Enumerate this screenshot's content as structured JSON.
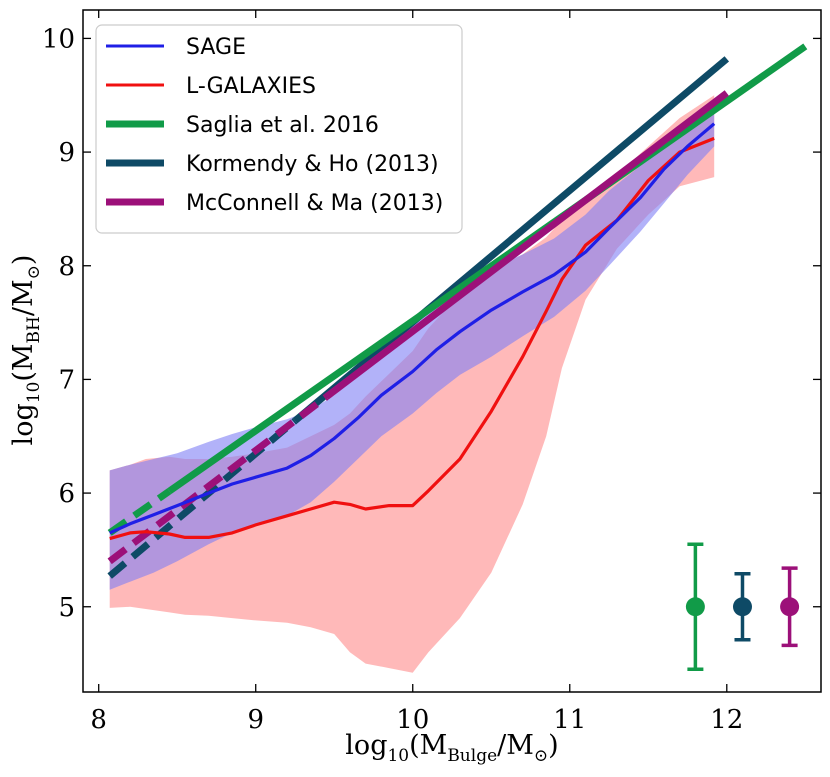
{
  "chart_data": {
    "type": "line",
    "xlabel": "log10(MBulge/M⊙)",
    "ylabel": "log10(MBH/M⊙)",
    "xlabel_parts": {
      "pre": "log",
      "sub": "10",
      "mid": "(M",
      "sub2": "Bulge",
      "post": "/M",
      "sun": "⊙",
      "close": ")"
    },
    "ylabel_parts": {
      "pre": "log",
      "sub": "10",
      "mid": "(M",
      "sub2": "BH",
      "post": "/M",
      "sun": "⊙",
      "close": ")"
    },
    "xlim": [
      7.9,
      12.6
    ],
    "ylim": [
      4.25,
      10.25
    ],
    "xticks": [
      "8",
      "9",
      "10",
      "11",
      "12"
    ],
    "yticks": [
      "5",
      "6",
      "7",
      "8",
      "9",
      "10"
    ],
    "legend_position": "top-left",
    "legend": [
      {
        "label": "SAGE",
        "color": "#1f1fe6"
      },
      {
        "label": "L-GALAXIES",
        "color": "#f01010"
      },
      {
        "label": "Saglia et al. 2016",
        "color": "#119b48"
      },
      {
        "label": "Kormendy & Ho (2013)",
        "color": "#0e4a66"
      },
      {
        "label": "McConnell & Ma (2013)",
        "color": "#9c1079"
      }
    ],
    "series": [
      {
        "name": "SAGE",
        "color": "#1f1fe6",
        "x": [
          8.07,
          8.2,
          8.35,
          8.5,
          8.7,
          8.85,
          9.0,
          9.2,
          9.35,
          9.5,
          9.65,
          9.8,
          10.0,
          10.15,
          10.3,
          10.5,
          10.7,
          10.9,
          11.1,
          11.25,
          11.45,
          11.6,
          11.75,
          11.92
        ],
        "y": [
          5.65,
          5.73,
          5.81,
          5.89,
          6.0,
          6.08,
          6.14,
          6.22,
          6.33,
          6.48,
          6.66,
          6.86,
          7.07,
          7.26,
          7.42,
          7.61,
          7.77,
          7.92,
          8.12,
          8.33,
          8.6,
          8.85,
          9.05,
          9.25
        ],
        "band_upper": [
          6.2,
          6.25,
          6.3,
          6.35,
          6.45,
          6.52,
          6.58,
          6.65,
          6.73,
          6.86,
          7.05,
          7.25,
          7.48,
          7.65,
          7.82,
          7.98,
          8.1,
          8.24,
          8.45,
          8.66,
          8.88,
          9.1,
          9.28,
          9.45
        ],
        "band_lower": [
          5.15,
          5.22,
          5.3,
          5.4,
          5.55,
          5.65,
          5.72,
          5.8,
          5.92,
          6.1,
          6.3,
          6.5,
          6.7,
          6.88,
          7.04,
          7.2,
          7.38,
          7.55,
          7.78,
          8.0,
          8.3,
          8.55,
          8.8,
          9.05
        ]
      },
      {
        "name": "L-GALAXIES",
        "color": "#f01010",
        "x": [
          8.07,
          8.2,
          8.3,
          8.45,
          8.55,
          8.7,
          8.85,
          9.0,
          9.2,
          9.35,
          9.5,
          9.6,
          9.7,
          9.85,
          10.0,
          10.1,
          10.3,
          10.5,
          10.7,
          10.85,
          10.95,
          11.1,
          11.3,
          11.5,
          11.7,
          11.92
        ],
        "y": [
          5.6,
          5.65,
          5.66,
          5.64,
          5.61,
          5.61,
          5.65,
          5.72,
          5.8,
          5.86,
          5.92,
          5.9,
          5.86,
          5.89,
          5.89,
          6.02,
          6.3,
          6.72,
          7.2,
          7.6,
          7.88,
          8.18,
          8.4,
          8.75,
          9.0,
          9.12
        ],
        "band_upper": [
          6.2,
          6.25,
          6.3,
          6.32,
          6.3,
          6.3,
          6.32,
          6.35,
          6.4,
          6.5,
          6.6,
          6.7,
          6.85,
          7.05,
          7.25,
          7.45,
          7.75,
          7.95,
          8.1,
          8.25,
          8.4,
          8.55,
          8.8,
          9.05,
          9.3,
          9.5
        ],
        "band_lower": [
          4.99,
          5.0,
          4.98,
          4.95,
          4.93,
          4.92,
          4.9,
          4.88,
          4.86,
          4.82,
          4.76,
          4.6,
          4.5,
          4.46,
          4.42,
          4.6,
          4.9,
          5.3,
          5.9,
          6.5,
          7.1,
          7.7,
          8.15,
          8.45,
          8.7,
          8.78
        ]
      },
      {
        "name": "Saglia et al. 2016",
        "color": "#119b48",
        "x": [
          8.07,
          12.5
        ],
        "y": [
          5.65,
          9.93
        ],
        "dashed_until": 8.45
      },
      {
        "name": "Kormendy & Ho (2013)",
        "color": "#0e4a66",
        "x": [
          8.07,
          12.0
        ],
        "y": [
          5.27,
          9.82
        ],
        "dashed_until": 9.25
      },
      {
        "name": "McConnell & Ma (2013)",
        "color": "#9c1079",
        "x": [
          8.07,
          12.0
        ],
        "y": [
          5.4,
          9.52
        ],
        "dashed_until": 9.45
      }
    ],
    "error_bars": [
      {
        "x": 11.8,
        "y": 5.0,
        "yerr_low": 0.55,
        "yerr_high": 0.55,
        "color": "#119b48"
      },
      {
        "x": 12.1,
        "y": 5.0,
        "yerr_low": 0.29,
        "yerr_high": 0.29,
        "color": "#0e4a66"
      },
      {
        "x": 12.4,
        "y": 5.0,
        "yerr_low": 0.34,
        "yerr_high": 0.34,
        "color": "#9c1079"
      }
    ]
  }
}
